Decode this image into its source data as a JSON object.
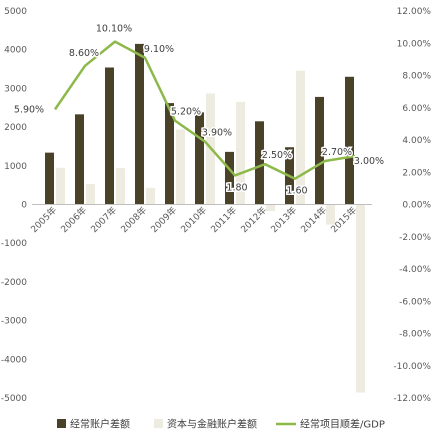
{
  "chart_data": {
    "type": "bar",
    "categories": [
      "2005年",
      "2006年",
      "2007年",
      "2008年",
      "2009年",
      "2010年",
      "2011年",
      "2012年",
      "2013年",
      "2014年",
      "2015年"
    ],
    "series": [
      {
        "name": "经常账户差额",
        "kind": "bar",
        "axis": "left",
        "color": "#4a4129",
        "values": [
          1340,
          2330,
          3540,
          4150,
          2620,
          2380,
          1360,
          2150,
          1480,
          2780,
          3300
        ]
      },
      {
        "name": "资本与金融账户差额",
        "kind": "bar",
        "axis": "left",
        "color": "#eeece1",
        "values": [
          950,
          530,
          940,
          430,
          1940,
          2870,
          2650,
          -170,
          3460,
          -520,
          -4860
        ]
      },
      {
        "name": "经常项目顺差/GDP",
        "kind": "line",
        "axis": "right",
        "color": "#8db84a",
        "values": [
          5.9,
          8.6,
          10.1,
          9.1,
          5.2,
          3.9,
          1.8,
          2.5,
          1.6,
          2.7,
          3.0
        ],
        "labels": [
          "5.90%",
          "8.60%",
          "10.10%",
          "9.10%",
          "5.20%",
          "3.90%",
          "1.80",
          "2.50%",
          "1.60",
          "2.70%",
          "3.00%"
        ]
      }
    ],
    "left_axis": {
      "ylim": [
        -5000,
        5000
      ],
      "ticks": [
        5000,
        4000,
        3000,
        2000,
        1000,
        0,
        -1000,
        -2000,
        -3000,
        -4000,
        -5000
      ],
      "tick_labels": [
        "5000",
        "4000",
        "3000",
        "2000",
        "1000",
        "0",
        "-1000",
        "-2000",
        "-3000",
        "-4000",
        "-5000"
      ]
    },
    "right_axis": {
      "ylim": [
        -12,
        12
      ],
      "ticks": [
        12,
        10,
        8,
        6,
        4,
        2,
        0,
        -2,
        -4,
        -6,
        -8,
        -10,
        -12
      ],
      "tick_labels": [
        "12.00%",
        "10.00%",
        "8.00%",
        "6.00%",
        "4.00%",
        "2.00%",
        "0.00%",
        "-2.00%",
        "-4.00%",
        "-6.00%",
        "-8.00%",
        "-10.00%",
        "-12.00%"
      ]
    },
    "grid": false,
    "legend_position": "bottom"
  }
}
